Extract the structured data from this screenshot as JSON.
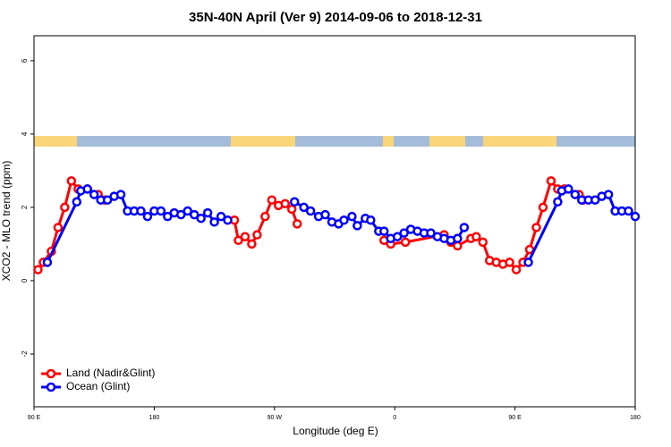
{
  "chart_data": {
    "type": "line",
    "title": "35N-40N April (Ver 9)   2014-09-06 to 2018-12-31",
    "xlabel": "Longitude (deg E)",
    "ylabel": "XCO2 - MLO trend (ppm)",
    "xlim": [
      90,
      540
    ],
    "ylim": [
      -3.44,
      6.68
    ],
    "xticks": [
      {
        "value": 90,
        "label": "90 E"
      },
      {
        "value": 180,
        "label": "180"
      },
      {
        "value": 270,
        "label": "90 W"
      },
      {
        "value": 360,
        "label": "0"
      },
      {
        "value": 450,
        "label": "90 E"
      },
      {
        "value": 540,
        "label": "180"
      }
    ],
    "yticks": [
      -2,
      0,
      2,
      4,
      6
    ],
    "legend": "bottom-left",
    "series": [
      {
        "name": "Land (Nadir&Glint)",
        "color": "#ff0000",
        "x": [
          93,
          97,
          103,
          108,
          113,
          118,
          123,
          130,
          138,
          143,
          190,
          240,
          243,
          248,
          253,
          257,
          263,
          268,
          273,
          278,
          283,
          287,
          320,
          352,
          357,
          368,
          397,
          402,
          407,
          417,
          421,
          426,
          431,
          436,
          441,
          446,
          451,
          456,
          461,
          466,
          471,
          477,
          482,
          487,
          498,
          501
        ],
        "values": [
          0.3,
          0.5,
          0.8,
          1.45,
          2.0,
          2.72,
          2.5,
          2.5,
          2.35,
          2.2,
          null,
          1.65,
          1.1,
          1.2,
          1.0,
          1.25,
          1.75,
          2.2,
          2.05,
          2.1,
          1.95,
          1.55,
          null,
          1.1,
          1.0,
          1.05,
          1.25,
          1.05,
          0.95,
          1.15,
          1.2,
          1.05,
          0.55,
          0.5,
          0.45,
          0.5,
          0.3,
          0.5,
          0.85,
          1.45,
          2.0,
          2.72,
          2.5,
          2.5,
          2.35,
          2.2
        ]
      },
      {
        "name": "Ocean (Glint)",
        "color": "#0000ff",
        "x": [
          100,
          122,
          125,
          130,
          135,
          140,
          145,
          150,
          155,
          160,
          165,
          170,
          175,
          180,
          185,
          190,
          195,
          200,
          205,
          210,
          215,
          220,
          225,
          230,
          235,
          260,
          285,
          292,
          297,
          303,
          308,
          313,
          318,
          322,
          328,
          332,
          338,
          342,
          348,
          352,
          357,
          362,
          367,
          372,
          377,
          382,
          387,
          392,
          397,
          402,
          407,
          412,
          440,
          460,
          482,
          485,
          490,
          495,
          500,
          505,
          510,
          515,
          520,
          525,
          530,
          535,
          540
        ],
        "values": [
          0.5,
          2.15,
          2.45,
          2.5,
          2.35,
          2.2,
          2.2,
          2.3,
          2.35,
          1.9,
          1.9,
          1.9,
          1.75,
          1.9,
          1.9,
          1.75,
          1.85,
          1.8,
          1.9,
          1.8,
          1.7,
          1.85,
          1.6,
          1.75,
          1.65,
          null,
          2.15,
          2.0,
          1.9,
          1.75,
          1.8,
          1.6,
          1.55,
          1.65,
          1.75,
          1.5,
          1.7,
          1.65,
          1.35,
          1.35,
          1.15,
          1.2,
          1.3,
          1.4,
          1.35,
          1.3,
          1.3,
          1.2,
          1.15,
          1.1,
          1.15,
          1.45,
          null,
          0.5,
          2.15,
          2.45,
          2.5,
          2.35,
          2.2,
          2.2,
          2.2,
          2.3,
          2.35,
          1.9,
          1.9,
          1.9,
          1.75
        ]
      }
    ]
  }
}
